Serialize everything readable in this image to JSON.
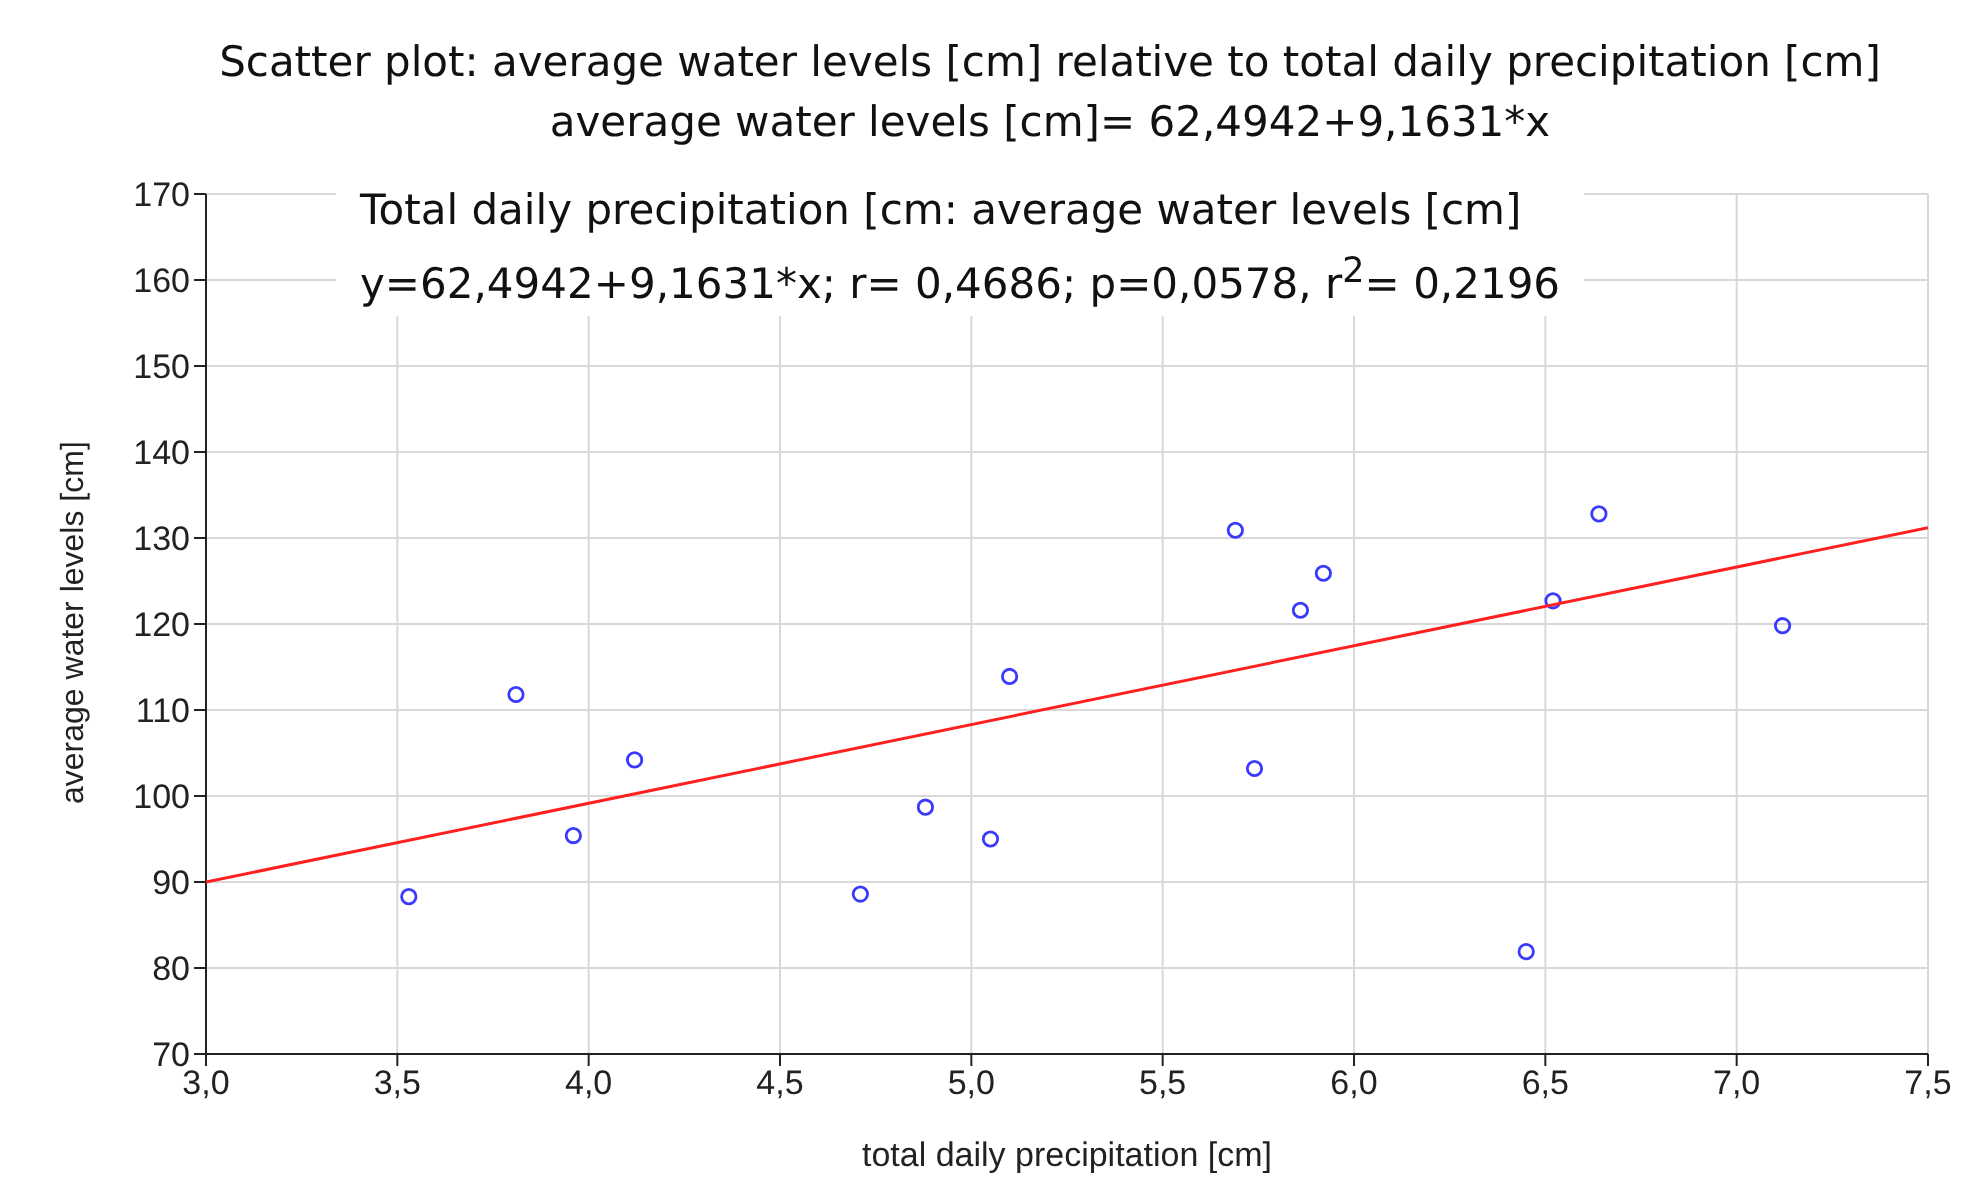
{
  "chart_data": {
    "type": "scatter",
    "title": "Scatter plot: average water levels [cm] relative to total daily precipitation [cm]",
    "subtitle": "average water levels [cm]= 62,4942+9,1631*x",
    "xlabel": "total daily precipitation [cm]",
    "ylabel": "average water levels [cm]",
    "annotations": [
      "Total daily precipitation [cm: average water levels [cm]",
      "y=62,4942+9,1631*x; r= 0,4686; p=0,0578, r$^{2}$= 0,2196"
    ],
    "series": [
      {
        "color": "#3a3aff",
        "x": [
          3.53,
          3.81,
          3.96,
          4.12,
          4.71,
          4.88,
          5.05,
          5.1,
          5.69,
          5.74,
          5.86,
          5.92,
          6.45,
          6.52,
          6.64,
          7.12
        ],
        "values": [
          88.3,
          111.8,
          95.4,
          104.2,
          88.6,
          98.7,
          95.0,
          113.9,
          130.9,
          103.2,
          121.6,
          125.9,
          81.9,
          122.7,
          132.8,
          119.8
        ]
      },
      {
        "type": "line",
        "marker": "none",
        "color": "#ff2020",
        "x": [
          3.0,
          7.5
        ],
        "values": [
          90.0,
          131.2
        ]
      }
    ],
    "marker": "circle",
    "grid": true,
    "legend": false,
    "xlim": [
      3.0,
      7.5
    ],
    "xticks": [
      {
        "value": 3.0,
        "label": "3,0"
      },
      {
        "value": 3.5,
        "label": "3,5"
      },
      {
        "value": 4.0,
        "label": "4,0"
      },
      {
        "value": 4.5,
        "label": "4,5"
      },
      {
        "value": 5.0,
        "label": "5,0"
      },
      {
        "value": 5.5,
        "label": "5,5"
      },
      {
        "value": 6.0,
        "label": "6,0"
      },
      {
        "value": 6.5,
        "label": "6,5"
      },
      {
        "value": 7.0,
        "label": "7,0"
      },
      {
        "value": 7.5,
        "label": "7,5"
      }
    ],
    "ylim": [
      70,
      170
    ],
    "yticks": [
      70,
      80,
      90,
      100,
      110,
      120,
      130,
      140,
      150,
      160,
      170
    ]
  }
}
